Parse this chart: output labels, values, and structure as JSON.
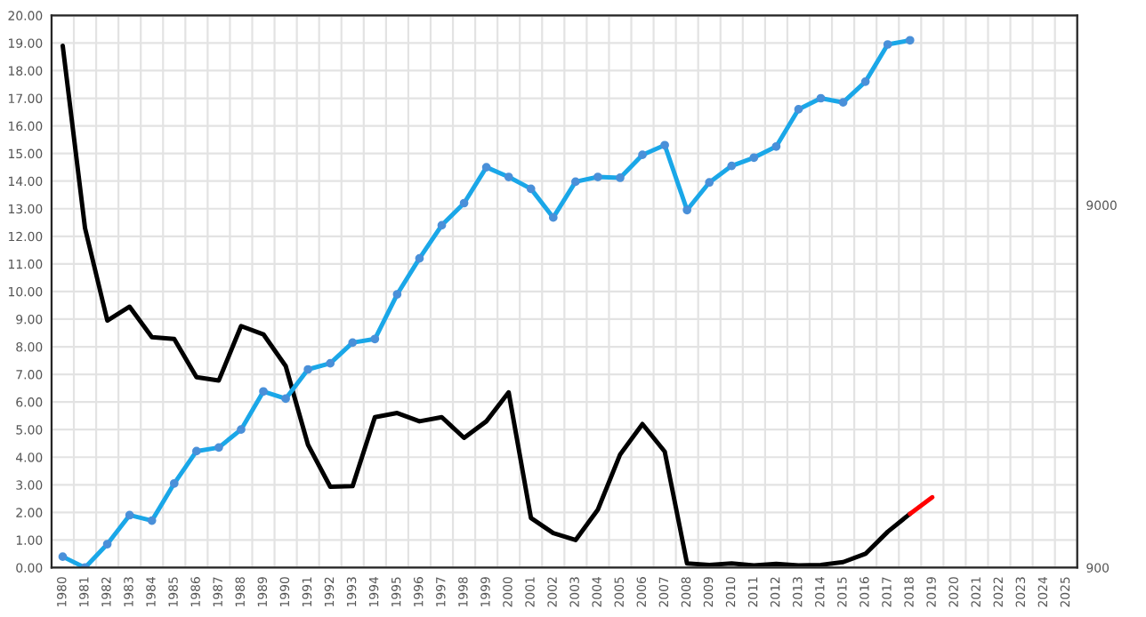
{
  "chart_data": {
    "type": "line",
    "categories": [
      "1980",
      "1981",
      "1982",
      "1983",
      "1984",
      "1985",
      "1986",
      "1987",
      "1988",
      "1989",
      "1990",
      "1991",
      "1992",
      "1993",
      "1994",
      "1995",
      "1996",
      "1997",
      "1998",
      "1999",
      "2000",
      "2001",
      "2002",
      "2003",
      "2004",
      "2005",
      "2006",
      "2007",
      "2008",
      "2009",
      "2010",
      "2011",
      "2012",
      "2013",
      "2014",
      "2015",
      "2016",
      "2017",
      "2018",
      "2019",
      "2020",
      "2021",
      "2022",
      "2023",
      "2024",
      "2025"
    ],
    "ylim": [
      0,
      20
    ],
    "yticks": [
      {
        "value": 0,
        "label": "0.00"
      },
      {
        "value": 1,
        "label": "1.00"
      },
      {
        "value": 2,
        "label": "2.00"
      },
      {
        "value": 3,
        "label": "3.00"
      },
      {
        "value": 4,
        "label": "4.00"
      },
      {
        "value": 5,
        "label": "5.00"
      },
      {
        "value": 6,
        "label": "6.00"
      },
      {
        "value": 7,
        "label": "7.00"
      },
      {
        "value": 8,
        "label": "8.00"
      },
      {
        "value": 9,
        "label": "9.00"
      },
      {
        "value": 10,
        "label": "10.00"
      },
      {
        "value": 11,
        "label": "11.00"
      },
      {
        "value": 12,
        "label": "12.00"
      },
      {
        "value": 13,
        "label": "13.00"
      },
      {
        "value": 14,
        "label": "14.00"
      },
      {
        "value": 15,
        "label": "15.00"
      },
      {
        "value": 16,
        "label": "16.00"
      },
      {
        "value": 17,
        "label": "17.00"
      },
      {
        "value": 18,
        "label": "18.00"
      },
      {
        "value": 19,
        "label": "19.00"
      },
      {
        "value": 20,
        "label": "20.00"
      }
    ],
    "log": "y2",
    "y2lim": [
      900,
      30000
    ],
    "y2ticks": [
      900,
      9000
    ],
    "grid": true,
    "series": [
      {
        "color": "#1aa7e8",
        "axis": "y2",
        "marker": "circle",
        "values": [
          965,
          900,
          1045,
          1256,
          1213,
          1536,
          1886,
          1930,
          2163,
          2755,
          2632,
          3169,
          3294,
          3757,
          3844,
          5106,
          6413,
          7916,
          9108,
          11440,
          10757,
          9975,
          8313,
          10437,
          10757,
          10700,
          12377,
          13160,
          8716,
          10387,
          11540,
          12160,
          13050,
          16530,
          17730,
          17270,
          19700,
          24950,
          25620,
          null,
          null,
          null,
          null,
          null,
          null,
          null
        ]
      },
      {
        "color": "#000000",
        "values": [
          18.9,
          12.3,
          8.95,
          9.45,
          8.35,
          8.28,
          6.9,
          6.78,
          8.75,
          8.45,
          7.3,
          4.45,
          2.93,
          2.95,
          5.45,
          5.6,
          5.3,
          5.45,
          4.7,
          5.3,
          6.35,
          1.8,
          1.25,
          1.0,
          2.1,
          4.1,
          5.2,
          4.2,
          0.15,
          0.1,
          0.15,
          0.08,
          0.14,
          0.08,
          0.1,
          0.2,
          0.5,
          1.3,
          1.95,
          null,
          null,
          null,
          null,
          null,
          null,
          null
        ]
      },
      {
        "color": "#ff0000",
        "values": [
          null,
          null,
          null,
          null,
          null,
          null,
          null,
          null,
          null,
          null,
          null,
          null,
          null,
          null,
          null,
          null,
          null,
          null,
          null,
          null,
          null,
          null,
          null,
          null,
          null,
          null,
          null,
          null,
          null,
          null,
          null,
          null,
          null,
          null,
          null,
          null,
          null,
          null,
          1.95,
          2.55,
          null,
          null,
          null,
          null,
          null,
          null
        ]
      }
    ]
  }
}
